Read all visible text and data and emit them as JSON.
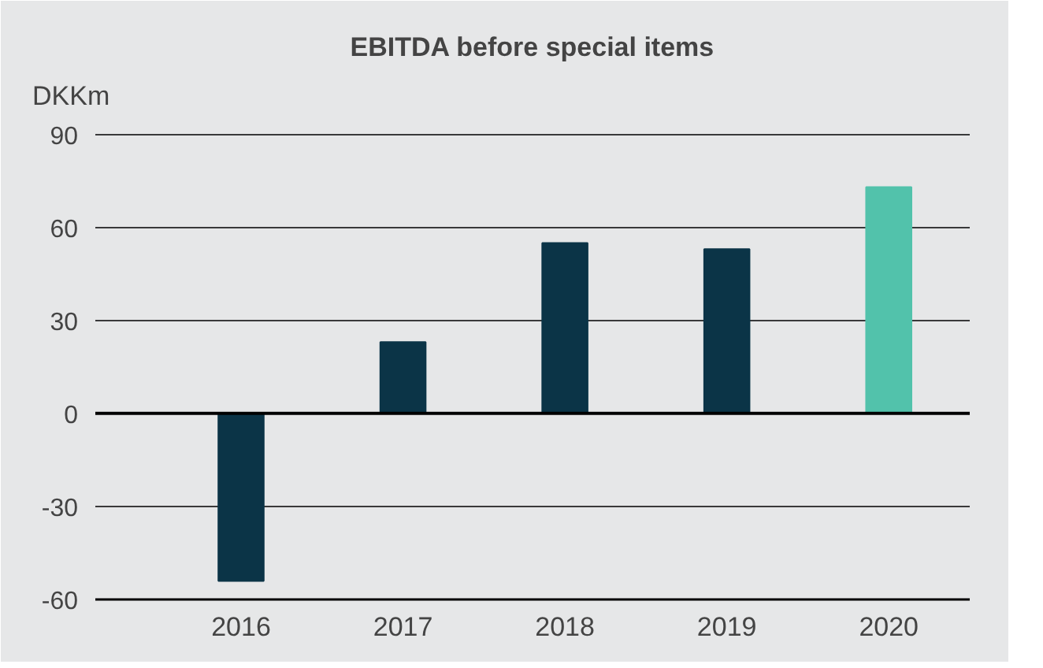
{
  "chart_data": {
    "type": "bar",
    "title": "EBITDA before special items",
    "ylabel": "DKKm",
    "categories": [
      "2016",
      "2017",
      "2018",
      "2019",
      "2020"
    ],
    "values": [
      -54,
      23,
      55,
      53,
      73
    ],
    "colors": [
      "#0b3447",
      "#0b3447",
      "#0b3447",
      "#0b3447",
      "#52c2ab"
    ],
    "ylim": [
      -60,
      95
    ],
    "yticks": [
      -60,
      -30,
      0,
      30,
      60,
      90
    ],
    "grid": "y",
    "ref_lines": [
      {
        "axis": "y",
        "value": 0,
        "color": "#000000"
      }
    ]
  }
}
